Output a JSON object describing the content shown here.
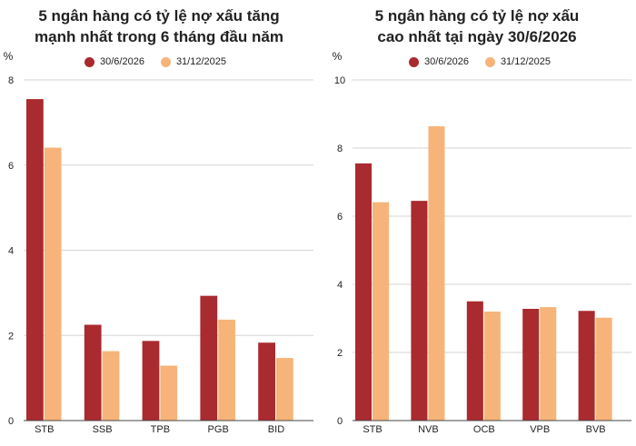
{
  "colors": {
    "series_2026": "#a92a2f",
    "series_2025": "#f7b47a",
    "grid": "#d6d6d6",
    "axis": "#444444"
  },
  "chart_data": [
    {
      "type": "bar",
      "title_lines": [
        "5 ngân hàng có tỷ lệ nợ xấu tăng",
        "mạnh nhất trong 6 tháng đầu năm"
      ],
      "ylabel": "%",
      "categories": [
        "STB",
        "SSB",
        "TPB",
        "PGB",
        "BID"
      ],
      "series": [
        {
          "name": "30/6/2026",
          "values": [
            7.55,
            2.25,
            1.87,
            2.93,
            1.83
          ]
        },
        {
          "name": "31/12/2025",
          "values": [
            6.41,
            1.63,
            1.29,
            2.37,
            1.47
          ]
        }
      ],
      "ylim": [
        0,
        8
      ],
      "yticks": [
        0,
        2,
        4,
        6,
        8
      ],
      "grid": true,
      "legend_position": "top"
    },
    {
      "type": "bar",
      "title_lines": [
        "5 ngân hàng có tỷ lệ nợ xấu",
        "cao nhất tại ngày 30/6/2026"
      ],
      "ylabel": "%",
      "categories": [
        "STB",
        "NVB",
        "OCB",
        "VPB",
        "BVB"
      ],
      "series": [
        {
          "name": "30/6/2026",
          "values": [
            7.55,
            6.45,
            3.5,
            3.28,
            3.22
          ]
        },
        {
          "name": "31/12/2025",
          "values": [
            6.41,
            8.64,
            3.2,
            3.33,
            3.02
          ]
        }
      ],
      "ylim": [
        0,
        10
      ],
      "yticks": [
        0,
        2,
        4,
        6,
        8,
        10
      ],
      "grid": true,
      "legend_position": "top"
    }
  ]
}
